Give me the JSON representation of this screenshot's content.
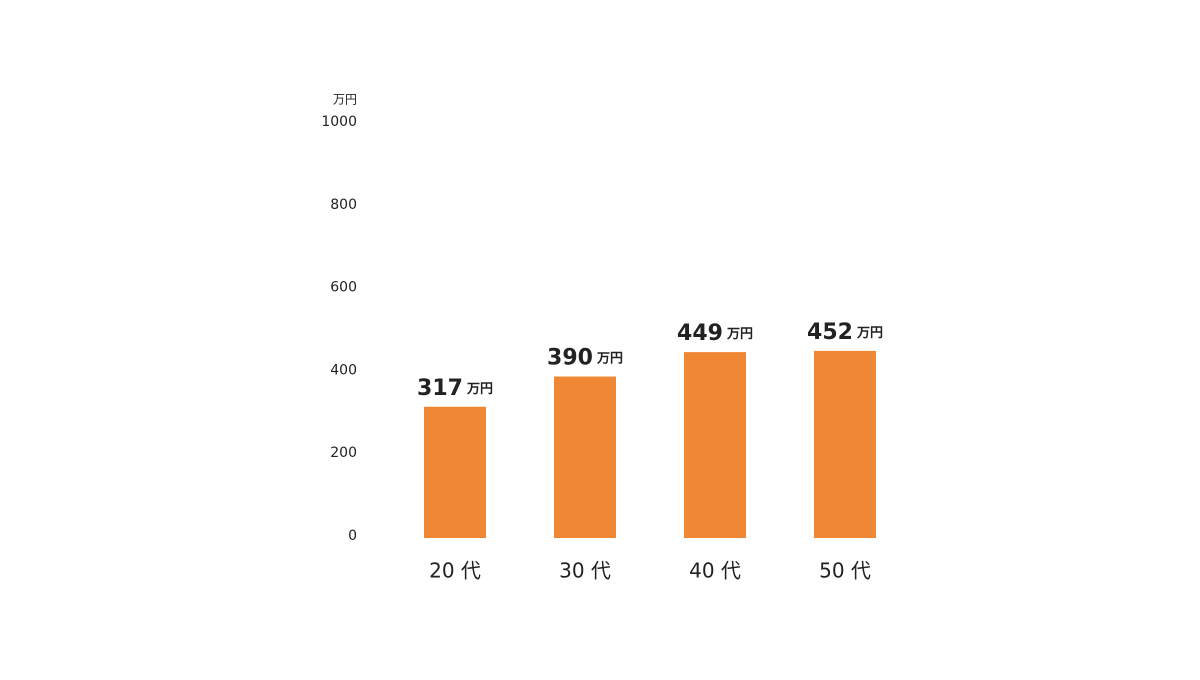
{
  "chart_data": {
    "type": "bar",
    "y_unit": "万円",
    "value_unit": "万円",
    "categories": [
      "20 代",
      "30 代",
      "40 代",
      "50 代"
    ],
    "values": [
      317,
      390,
      449,
      452
    ],
    "color": "#f08735",
    "ylim": [
      0,
      1000
    ],
    "yticks": [
      0,
      200,
      400,
      600,
      800,
      1000
    ],
    "grid": false
  }
}
